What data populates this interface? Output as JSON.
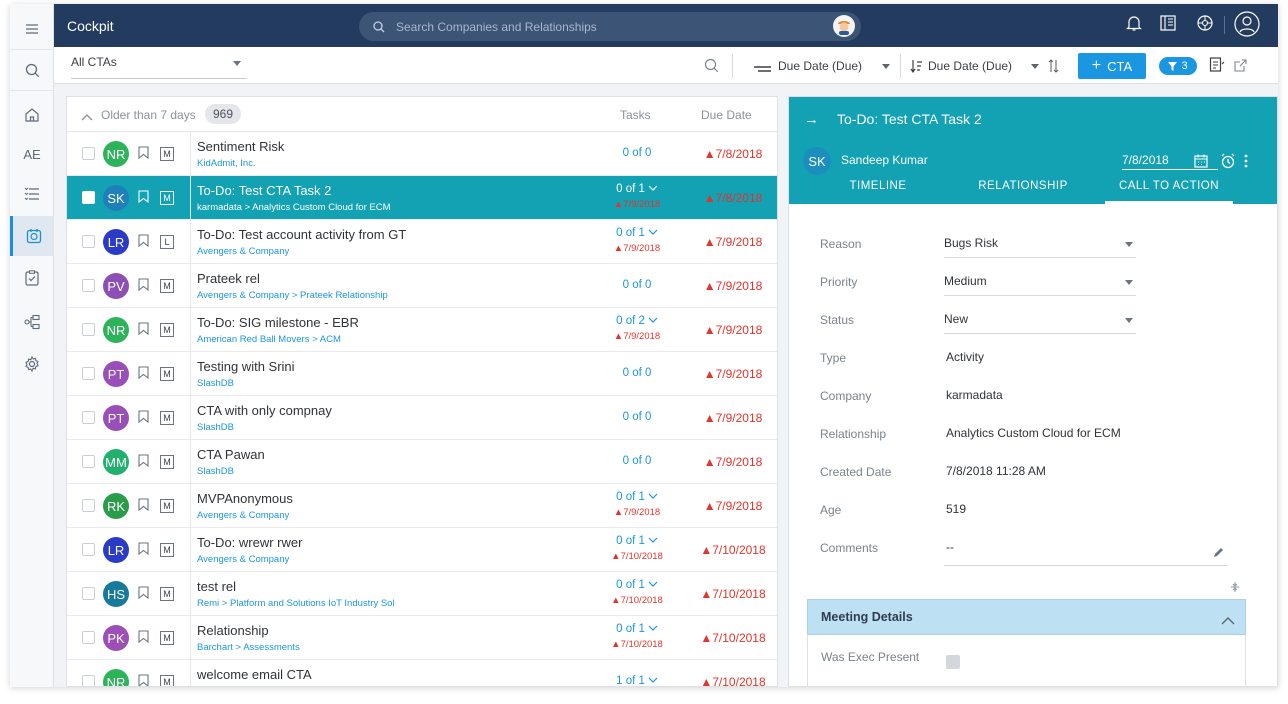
{
  "app": {
    "title": "Cockpit"
  },
  "search": {
    "placeholder": "Search Companies and Relationships"
  },
  "rail": {
    "ae_label": "AE"
  },
  "filterbar": {
    "cta_filter": "All CTAs",
    "sort1": "Due Date (Due)",
    "sort2": "Due Date (Due)",
    "add_cta": "CTA",
    "filter_count": "3"
  },
  "list": {
    "group_label": "Older than 7 days",
    "group_count": "969",
    "col_tasks": "Tasks",
    "col_due": "Due Date",
    "rows": [
      {
        "initials": "NR",
        "color": "#2db45a",
        "tag": "M",
        "title": "Sentiment Risk",
        "sub": "KidAdmit, Inc.",
        "tasks": "0 of 0",
        "task_date": "",
        "due": "7/8/2018"
      },
      {
        "initials": "SK",
        "color": "#1f7fb8",
        "tag": "M",
        "title": "To-Do: Test CTA Task 2",
        "sub": "karmadata  >  Analytics Custom Cloud for ECM",
        "tasks": "0 of 1",
        "task_date": "7/9/2018",
        "due": "7/8/2018"
      },
      {
        "initials": "LR",
        "color": "#2a3bc7",
        "tag": "L",
        "title": "To-Do: Test account activity from GT",
        "sub": "Avengers & Company",
        "tasks": "0 of 1",
        "task_date": "7/9/2018",
        "due": "7/9/2018"
      },
      {
        "initials": "PV",
        "color": "#8e4fb5",
        "tag": "M",
        "title": "Prateek rel",
        "sub": "Avengers & Company  >  Prateek Relationship",
        "tasks": "0 of 0",
        "task_date": "",
        "due": "7/9/2018"
      },
      {
        "initials": "NR",
        "color": "#2db45a",
        "tag": "M",
        "title": "To-Do: SIG milestone - EBR",
        "sub": "American Red Ball Movers  >  ACM",
        "tasks": "0 of 2",
        "task_date": "7/9/2018",
        "due": "7/9/2018"
      },
      {
        "initials": "PT",
        "color": "#9a4fb8",
        "tag": "M",
        "title": "Testing with Srini",
        "sub": "SlashDB",
        "tasks": "0 of 0",
        "task_date": "",
        "due": "7/9/2018"
      },
      {
        "initials": "PT",
        "color": "#9a4fb8",
        "tag": "M",
        "title": "CTA with only compnay",
        "sub": "SlashDB",
        "tasks": "0 of 0",
        "task_date": "",
        "due": "7/9/2018"
      },
      {
        "initials": "MM",
        "color": "#22b06e",
        "tag": "M",
        "title": "CTA Pawan",
        "sub": "SlashDB",
        "tasks": "0 of 0",
        "task_date": "",
        "due": "7/9/2018"
      },
      {
        "initials": "RK",
        "color": "#2a9d4b",
        "tag": "M",
        "title": "MVPAnonymous",
        "sub": "Avengers & Company",
        "tasks": "0 of 1",
        "task_date": "7/9/2018",
        "due": "7/9/2018"
      },
      {
        "initials": "LR",
        "color": "#2a3bc7",
        "tag": "M",
        "title": "To-Do: wrewr rwer",
        "sub": "Avengers & Company",
        "tasks": "0 of 1",
        "task_date": "7/10/2018",
        "due": "7/10/2018"
      },
      {
        "initials": "HS",
        "color": "#157a9c",
        "tag": "M",
        "title": "test rel",
        "sub": "Remi  >  Platform and Solutions IoT Industry Sol",
        "tasks": "0 of 1",
        "task_date": "7/10/2018",
        "due": "7/10/2018"
      },
      {
        "initials": "PK",
        "color": "#9b4fb7",
        "tag": "M",
        "title": "Relationship",
        "sub": "Barchart  >  Assessments",
        "tasks": "0 of 1",
        "task_date": "7/10/2018",
        "due": "7/10/2018"
      },
      {
        "initials": "NR",
        "color": "#2db45a",
        "tag": "M",
        "title": "welcome email CTA",
        "sub": "",
        "tasks": "1 of 1",
        "task_date": "",
        "due": "7/10/2018"
      }
    ]
  },
  "detail": {
    "title": "To-Do: Test CTA Task 2",
    "owner_initials": "SK",
    "owner": "Sandeep Kumar",
    "date": "7/8/2018",
    "tabs": [
      "TIMELINE",
      "RELATIONSHIP",
      "CALL TO ACTION"
    ],
    "fields": [
      {
        "label": "Reason",
        "value": "Bugs Risk",
        "select": true
      },
      {
        "label": "Priority",
        "value": "Medium",
        "select": true
      },
      {
        "label": "Status",
        "value": "New",
        "select": true
      },
      {
        "label": "Type",
        "value": "Activity",
        "select": false
      },
      {
        "label": "Company",
        "value": "karmadata",
        "select": false
      },
      {
        "label": "Relationship",
        "value": "Analytics Custom Cloud for ECM",
        "select": false
      },
      {
        "label": "Created Date",
        "value": "7/8/2018 11:28 AM",
        "select": false
      },
      {
        "label": "Age",
        "value": "519",
        "select": false
      },
      {
        "label": "Comments",
        "value": "--",
        "select": false
      }
    ],
    "meeting_title": "Meeting Details",
    "meeting_field": "Was Exec Present"
  },
  "colors": {
    "accent": "#1b96e0",
    "teal": "#12a2b4",
    "navy": "#233b5e",
    "alert": "#e2342c"
  }
}
